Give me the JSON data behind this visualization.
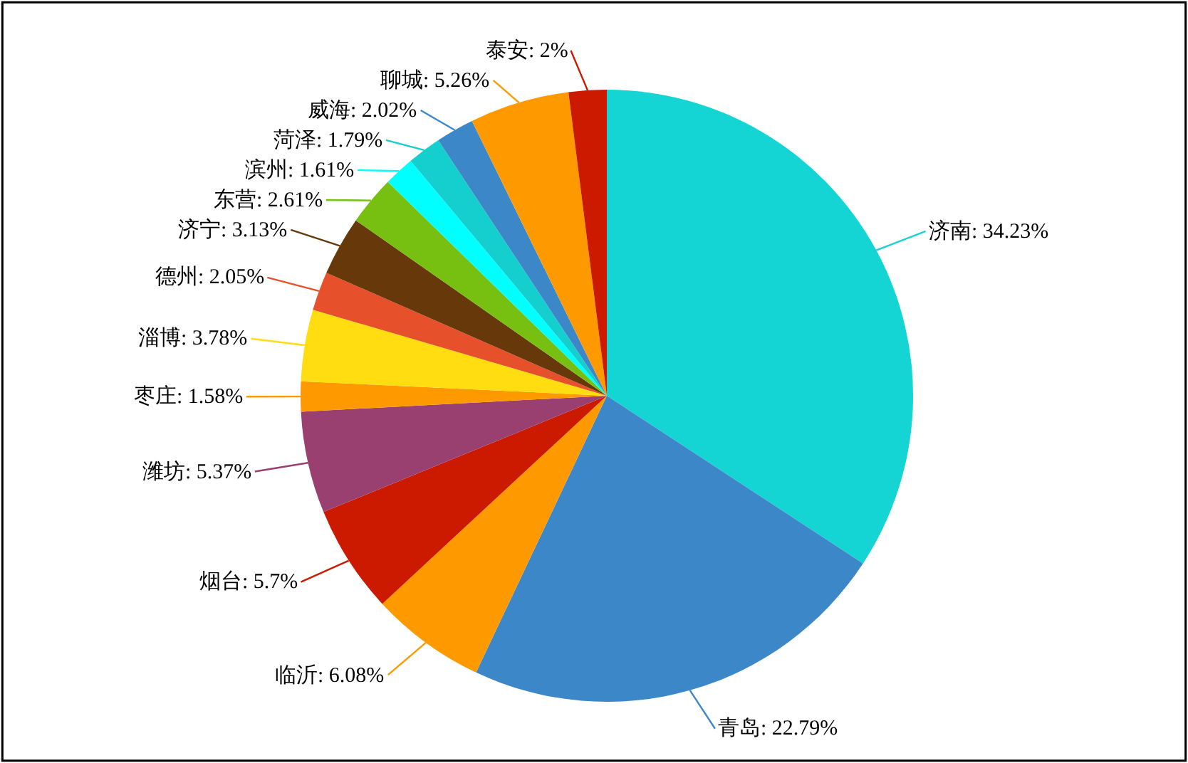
{
  "chart_data": {
    "type": "pie",
    "categories": [
      "济南",
      "青岛",
      "临沂",
      "烟台",
      "潍坊",
      "枣庄",
      "淄博",
      "德州",
      "济宁",
      "东营",
      "滨州",
      "菏泽",
      "威海",
      "聊城",
      "泰安"
    ],
    "values": [
      34.23,
      22.79,
      6.08,
      5.7,
      5.37,
      1.58,
      3.78,
      2.05,
      3.13,
      2.61,
      1.61,
      1.79,
      2.02,
      5.26,
      2
    ],
    "value_labels": [
      "34.23%",
      "22.79%",
      "6.08%",
      "5.7%",
      "5.37%",
      "1.58%",
      "3.78%",
      "2.05%",
      "3.13%",
      "2.61%",
      "1.61%",
      "1.79%",
      "2.02%",
      "5.26%",
      "2%"
    ],
    "colors": [
      "#14d4d4",
      "#3c87c8",
      "#ff9900",
      "#cc1a00",
      "#994070",
      "#ff9900",
      "#ffdd11",
      "#e6502a",
      "#66380a",
      "#77c011",
      "#00ffff",
      "#15cfcf",
      "#3c87c8",
      "#ff9900",
      "#cc1a00"
    ],
    "legend": false
  }
}
